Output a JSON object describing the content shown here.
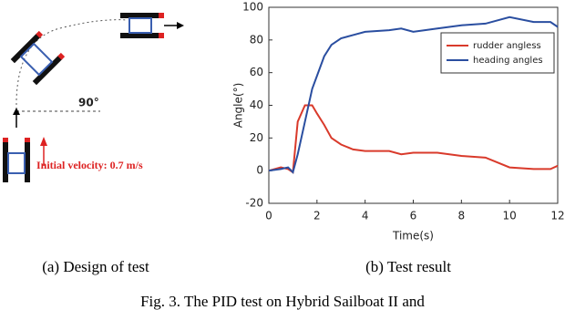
{
  "diagram": {
    "angle_label": "90°",
    "velocity_label": "Initial velocity: 0.7 m/s"
  },
  "captions": {
    "left": "(a) Design of test",
    "right": "(b) Test result",
    "figure": "Fig. 3.  The PID test on Hybrid Sailboat II and"
  },
  "chart_data": {
    "type": "line",
    "xlabel": "Time(s)",
    "ylabel": "Angle(°)",
    "x": [
      0,
      0.5,
      0.8,
      1.0,
      1.2,
      1.5,
      1.8,
      2.0,
      2.3,
      2.6,
      3.0,
      3.5,
      4.0,
      5.0,
      5.5,
      6.0,
      7.0,
      8.0,
      9.0,
      10.0,
      11.0,
      11.7,
      12.0
    ],
    "series": [
      {
        "name": "rudder angless",
        "color": "#d93a2b",
        "values": [
          0,
          2,
          1,
          -1,
          30,
          40,
          40,
          35,
          28,
          20,
          16,
          13,
          12,
          12,
          10,
          11,
          11,
          9,
          8,
          2,
          1,
          1,
          3
        ]
      },
      {
        "name": "heading angles",
        "color": "#2a4ea0",
        "values": [
          0,
          1,
          2,
          -1,
          10,
          30,
          50,
          58,
          70,
          77,
          81,
          83,
          85,
          86,
          87,
          85,
          87,
          89,
          90,
          94,
          91,
          91,
          88
        ]
      }
    ],
    "xlim": [
      0,
      12
    ],
    "xticks": [
      0,
      2,
      4,
      6,
      8,
      10,
      12
    ],
    "ylim": [
      -20,
      100
    ],
    "yticks": [
      -20,
      0,
      20,
      40,
      60,
      80,
      100
    ],
    "legend": "upper right"
  }
}
